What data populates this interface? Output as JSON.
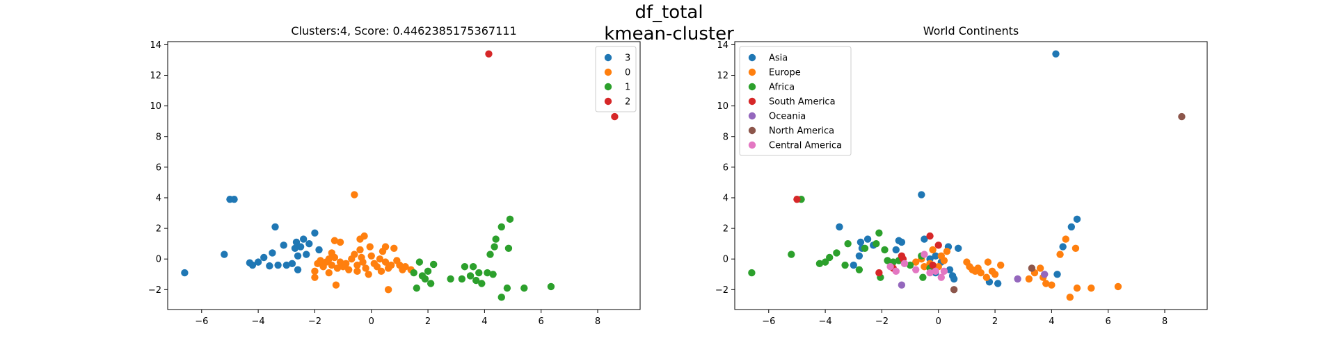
{
  "suptitle": [
    "df_total",
    "kmean-cluster"
  ],
  "chart_data": [
    {
      "type": "scatter",
      "title": "Clusters:4, Score: 0.4462385175367111",
      "xlabel": "",
      "ylabel": "",
      "xlim": [
        -7.2,
        9.5
      ],
      "ylim": [
        -3.3,
        14.2
      ],
      "xticks": [
        -6,
        -4,
        -2,
        0,
        2,
        4,
        6,
        8
      ],
      "yticks": [
        -2,
        0,
        2,
        4,
        6,
        8,
        10,
        12,
        14
      ],
      "grid": false,
      "legend_position": "top-right",
      "series": [
        {
          "name": "3",
          "color": "#1f77b4",
          "points": [
            [
              -6.6,
              -0.9
            ],
            [
              -5.2,
              0.3
            ],
            [
              -5.0,
              3.9
            ],
            [
              -4.85,
              3.9
            ],
            [
              -4.3,
              -0.25
            ],
            [
              -4.2,
              -0.4
            ],
            [
              -4.0,
              -0.2
            ],
            [
              -3.8,
              0.1
            ],
            [
              -3.6,
              -0.45
            ],
            [
              -3.5,
              0.4
            ],
            [
              -3.4,
              2.1
            ],
            [
              -3.3,
              -0.4
            ],
            [
              -3.1,
              0.9
            ],
            [
              -3.0,
              -0.4
            ],
            [
              -2.8,
              -0.3
            ],
            [
              -2.7,
              0.7
            ],
            [
              -2.65,
              1.1
            ],
            [
              -2.6,
              -0.7
            ],
            [
              -2.6,
              0.2
            ],
            [
              -2.5,
              0.8
            ],
            [
              -2.4,
              1.3
            ],
            [
              -2.3,
              0.3
            ],
            [
              -2.2,
              1.0
            ],
            [
              -2.0,
              1.7
            ],
            [
              -1.85,
              0.6
            ]
          ]
        },
        {
          "name": "0",
          "color": "#ff7f0e",
          "points": [
            [
              -2.0,
              -0.8
            ],
            [
              -2.0,
              -1.2
            ],
            [
              -1.9,
              -0.3
            ],
            [
              -1.8,
              -0.1
            ],
            [
              -1.7,
              -0.5
            ],
            [
              -1.6,
              -0.2
            ],
            [
              -1.5,
              0.0
            ],
            [
              -1.5,
              -0.9
            ],
            [
              -1.4,
              -0.4
            ],
            [
              -1.4,
              0.4
            ],
            [
              -1.3,
              0.1
            ],
            [
              -1.3,
              1.2
            ],
            [
              -1.25,
              -1.7
            ],
            [
              -1.2,
              -0.6
            ],
            [
              -1.1,
              1.1
            ],
            [
              -1.1,
              -0.2
            ],
            [
              -1.0,
              -0.5
            ],
            [
              -0.9,
              -0.3
            ],
            [
              -0.8,
              -0.7
            ],
            [
              -0.7,
              0.0
            ],
            [
              -0.6,
              0.3
            ],
            [
              -0.6,
              4.2
            ],
            [
              -0.5,
              -0.4
            ],
            [
              -0.5,
              -0.8
            ],
            [
              -0.4,
              0.6
            ],
            [
              -0.4,
              1.3
            ],
            [
              -0.35,
              0.1
            ],
            [
              -0.3,
              -0.2
            ],
            [
              -0.25,
              1.5
            ],
            [
              -0.2,
              -0.6
            ],
            [
              -0.1,
              -1.0
            ],
            [
              -0.05,
              0.8
            ],
            [
              0.0,
              0.2
            ],
            [
              0.1,
              -0.3
            ],
            [
              0.2,
              -0.5
            ],
            [
              0.3,
              0.0
            ],
            [
              0.35,
              -0.8
            ],
            [
              0.4,
              0.5
            ],
            [
              0.5,
              -0.2
            ],
            [
              0.5,
              0.8
            ],
            [
              0.6,
              -0.6
            ],
            [
              0.6,
              -2.0
            ],
            [
              0.7,
              -0.4
            ],
            [
              0.8,
              0.7
            ],
            [
              0.9,
              -0.1
            ],
            [
              1.0,
              -0.4
            ],
            [
              1.1,
              -0.7
            ],
            [
              1.2,
              -0.5
            ],
            [
              1.4,
              -0.7
            ]
          ]
        },
        {
          "name": "1",
          "color": "#2ca02c",
          "points": [
            [
              1.5,
              -0.9
            ],
            [
              1.6,
              -1.9
            ],
            [
              1.7,
              -0.2
            ],
            [
              1.8,
              -1.1
            ],
            [
              1.9,
              -1.3
            ],
            [
              2.0,
              -0.8
            ],
            [
              2.1,
              -1.6
            ],
            [
              2.2,
              -0.35
            ],
            [
              2.8,
              -1.3
            ],
            [
              3.2,
              -1.3
            ],
            [
              3.3,
              -0.5
            ],
            [
              3.5,
              -1.1
            ],
            [
              3.6,
              -0.5
            ],
            [
              3.7,
              -1.4
            ],
            [
              3.8,
              -0.9
            ],
            [
              3.9,
              -1.6
            ],
            [
              4.1,
              -0.9
            ],
            [
              4.2,
              0.3
            ],
            [
              4.3,
              -1.0
            ],
            [
              4.35,
              0.8
            ],
            [
              4.4,
              1.3
            ],
            [
              4.6,
              2.1
            ],
            [
              4.6,
              -2.5
            ],
            [
              4.8,
              -1.9
            ],
            [
              4.85,
              0.7
            ],
            [
              4.9,
              2.6
            ],
            [
              5.4,
              -1.9
            ],
            [
              6.35,
              -1.8
            ]
          ]
        },
        {
          "name": "2",
          "color": "#d62728",
          "points": [
            [
              4.15,
              13.4
            ],
            [
              8.6,
              9.3
            ]
          ]
        }
      ]
    },
    {
      "type": "scatter",
      "title": "World Continents",
      "xlabel": "",
      "ylabel": "",
      "xlim": [
        -7.2,
        9.5
      ],
      "ylim": [
        -3.3,
        14.2
      ],
      "xticks": [
        -6,
        -4,
        -2,
        0,
        2,
        4,
        6,
        8
      ],
      "yticks": [
        -2,
        0,
        2,
        4,
        6,
        8,
        10,
        12,
        14
      ],
      "grid": false,
      "legend_position": "top-left",
      "series": [
        {
          "name": "Asia",
          "color": "#1f77b4",
          "points": [
            [
              -3.5,
              2.1
            ],
            [
              -3.0,
              -0.4
            ],
            [
              -2.8,
              0.2
            ],
            [
              -2.75,
              1.1
            ],
            [
              -2.7,
              0.7
            ],
            [
              -2.5,
              1.3
            ],
            [
              -2.3,
              0.9
            ],
            [
              -1.5,
              0.6
            ],
            [
              -1.4,
              1.2
            ],
            [
              -1.3,
              1.1
            ],
            [
              -0.6,
              4.2
            ],
            [
              -0.5,
              1.3
            ],
            [
              -0.3,
              0.0
            ],
            [
              -0.1,
              -0.9
            ],
            [
              -0.1,
              0.2
            ],
            [
              0.1,
              -0.2
            ],
            [
              0.35,
              0.8
            ],
            [
              0.4,
              -0.7
            ],
            [
              0.5,
              -1.1
            ],
            [
              0.55,
              -1.3
            ],
            [
              0.7,
              0.7
            ],
            [
              1.8,
              -1.5
            ],
            [
              2.1,
              -1.6
            ],
            [
              4.15,
              13.4
            ],
            [
              4.2,
              -1.0
            ],
            [
              4.4,
              0.8
            ],
            [
              4.7,
              2.1
            ],
            [
              4.9,
              2.6
            ]
          ]
        },
        {
          "name": "Europe",
          "color": "#ff7f0e",
          "points": [
            [
              -0.8,
              -0.2
            ],
            [
              -0.6,
              0.0
            ],
            [
              -0.5,
              -0.5
            ],
            [
              -0.3,
              -0.3
            ],
            [
              -0.2,
              0.6
            ],
            [
              0.0,
              -0.5
            ],
            [
              0.1,
              0.2
            ],
            [
              0.2,
              -0.1
            ],
            [
              0.3,
              0.5
            ],
            [
              1.0,
              -0.2
            ],
            [
              1.1,
              -0.5
            ],
            [
              1.2,
              -0.7
            ],
            [
              1.3,
              -0.8
            ],
            [
              1.4,
              -0.6
            ],
            [
              1.5,
              -0.9
            ],
            [
              1.7,
              -1.2
            ],
            [
              1.75,
              -0.2
            ],
            [
              1.9,
              -0.8
            ],
            [
              2.0,
              -1.0
            ],
            [
              2.2,
              -0.4
            ],
            [
              3.2,
              -1.3
            ],
            [
              3.4,
              -0.9
            ],
            [
              3.6,
              -0.6
            ],
            [
              3.7,
              -1.2
            ],
            [
              3.8,
              -1.6
            ],
            [
              4.0,
              -1.7
            ],
            [
              4.3,
              0.3
            ],
            [
              4.5,
              1.3
            ],
            [
              4.65,
              -2.5
            ],
            [
              4.85,
              0.7
            ],
            [
              4.9,
              -1.9
            ],
            [
              5.4,
              -1.9
            ],
            [
              6.35,
              -1.8
            ]
          ]
        },
        {
          "name": "Africa",
          "color": "#2ca02c",
          "points": [
            [
              -6.6,
              -0.9
            ],
            [
              -5.2,
              0.3
            ],
            [
              -4.85,
              3.9
            ],
            [
              -4.2,
              -0.3
            ],
            [
              -4.0,
              -0.2
            ],
            [
              -3.85,
              0.1
            ],
            [
              -3.6,
              0.4
            ],
            [
              -3.3,
              -0.4
            ],
            [
              -3.2,
              1.0
            ],
            [
              -2.8,
              -0.7
            ],
            [
              -2.6,
              0.7
            ],
            [
              -2.2,
              1.0
            ],
            [
              -2.1,
              1.7
            ],
            [
              -2.05,
              -1.2
            ],
            [
              -1.9,
              0.6
            ],
            [
              -1.8,
              -0.1
            ],
            [
              -1.6,
              -0.2
            ],
            [
              -1.4,
              -0.1
            ],
            [
              -1.0,
              -0.4
            ],
            [
              -0.6,
              0.2
            ],
            [
              -0.55,
              -1.2
            ],
            [
              -0.3,
              -0.6
            ]
          ]
        },
        {
          "name": "South America",
          "color": "#d62728",
          "points": [
            [
              -5.0,
              3.9
            ],
            [
              -2.1,
              -0.9
            ],
            [
              -1.6,
              -0.6
            ],
            [
              -1.3,
              0.2
            ],
            [
              -1.25,
              0.0
            ],
            [
              -0.3,
              1.5
            ],
            [
              -0.2,
              -0.4
            ],
            [
              0.0,
              0.9
            ]
          ]
        },
        {
          "name": "Oceania",
          "color": "#9467bd",
          "points": [
            [
              -1.3,
              -1.7
            ],
            [
              2.8,
              -1.3
            ],
            [
              3.75,
              -1.0
            ]
          ]
        },
        {
          "name": "North America",
          "color": "#8c564b",
          "points": [
            [
              0.55,
              -2.0
            ],
            [
              3.3,
              -0.6
            ],
            [
              8.6,
              9.3
            ]
          ]
        },
        {
          "name": "Central America",
          "color": "#e377c2",
          "points": [
            [
              -1.7,
              -0.5
            ],
            [
              -1.5,
              -0.8
            ],
            [
              -1.2,
              -0.3
            ],
            [
              -0.8,
              -0.7
            ],
            [
              -0.5,
              0.3
            ],
            [
              -0.3,
              -0.9
            ],
            [
              -0.1,
              -0.8
            ],
            [
              0.1,
              -1.2
            ],
            [
              0.2,
              -0.8
            ]
          ]
        }
      ]
    }
  ]
}
